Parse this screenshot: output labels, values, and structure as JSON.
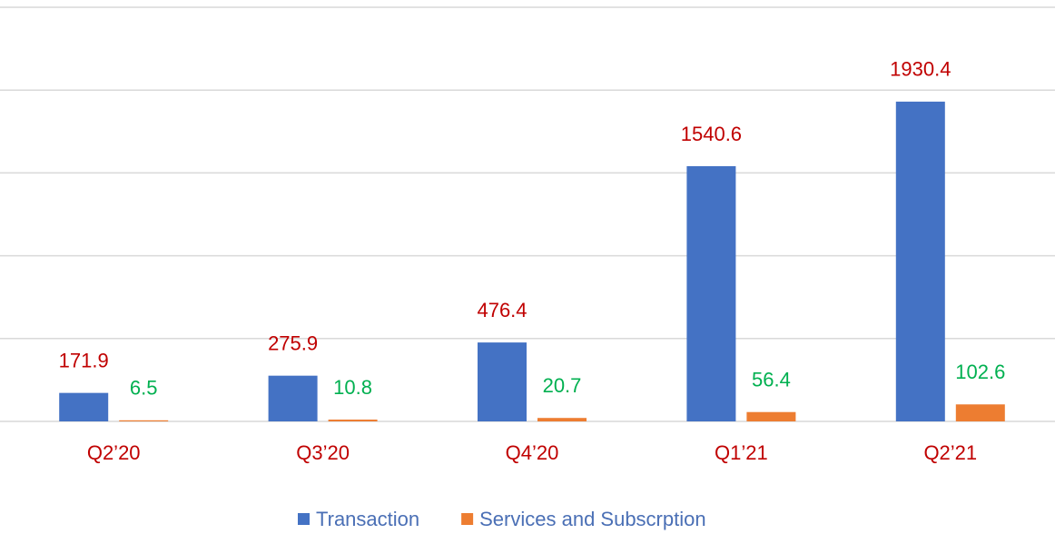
{
  "chart_data": {
    "type": "bar",
    "categories": [
      "Q2’20",
      "Q3’20",
      "Q4’20",
      "Q1’21",
      "Q2’21"
    ],
    "series": [
      {
        "name": "Transaction",
        "color": "#4472c4",
        "label_color": "#c00000",
        "values": [
          171.9,
          275.9,
          476.4,
          1540.6,
          1930.4
        ]
      },
      {
        "name": "Services and Subscrption",
        "color": "#ed7d31",
        "label_color": "#00b050",
        "values": [
          6.5,
          10.8,
          20.7,
          56.4,
          102.6
        ]
      }
    ],
    "ylim": [
      0,
      2500
    ],
    "yticks": [
      0,
      500,
      1000,
      1500,
      2000,
      2500
    ],
    "grid": true,
    "category_label_color": "#c00000",
    "legend_text_color": "#4a6fb5",
    "legend": "bottom"
  }
}
